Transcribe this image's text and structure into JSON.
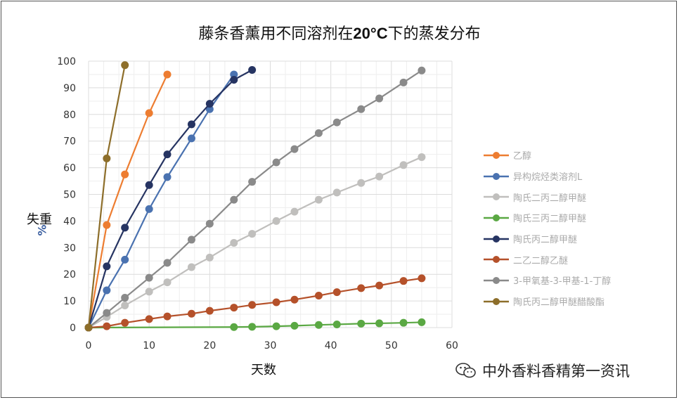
{
  "chart_data": {
    "type": "line",
    "title_parts": [
      "藤条香薰用不同溶剂在",
      "20°C",
      "下的蒸发分布"
    ],
    "xlabel": "天数",
    "ylabel": "失重",
    "ylabel_unit": "%",
    "xlim": [
      0,
      60
    ],
    "ylim": [
      0,
      100
    ],
    "xticks": [
      0,
      10,
      20,
      30,
      40,
      50,
      60
    ],
    "yticks": [
      0,
      10,
      20,
      30,
      40,
      50,
      60,
      70,
      80,
      90,
      100
    ],
    "grid": true,
    "legend_position": "right",
    "series": [
      {
        "name": "乙醇",
        "color": "#ed7d31",
        "x": [
          0,
          3,
          6,
          10,
          13
        ],
        "y": [
          0,
          38.5,
          57.5,
          80.5,
          95
        ]
      },
      {
        "name": "异构烷烃类溶剂L",
        "color": "#4a72b0",
        "x": [
          0,
          3,
          6,
          10,
          13,
          17,
          20,
          24
        ],
        "y": [
          0,
          14,
          25.5,
          44.5,
          56.5,
          71,
          82,
          95
        ]
      },
      {
        "name": "陶氏二丙二醇甲醚",
        "color": "#c0bfbd",
        "x": [
          0,
          3,
          6,
          10,
          13,
          17,
          20,
          24,
          27,
          31,
          34,
          38,
          41,
          45,
          48,
          52,
          55
        ],
        "y": [
          0,
          4,
          8.3,
          13.5,
          17,
          22.7,
          26.3,
          31.8,
          35.2,
          40,
          43.5,
          48,
          50.7,
          54.3,
          56.7,
          61,
          64
        ]
      },
      {
        "name": "陶氏三丙二醇甲醚",
        "color": "#5aa843",
        "x": [
          0,
          24,
          27,
          31,
          34,
          38,
          41,
          45,
          48,
          52,
          55
        ],
        "y": [
          0,
          0.2,
          0.3,
          0.5,
          0.7,
          1,
          1.2,
          1.5,
          1.6,
          1.8,
          2
        ]
      },
      {
        "name": "陶氏丙二醇甲醚",
        "color": "#263462",
        "x": [
          0,
          3,
          6,
          10,
          13,
          17,
          20,
          24,
          27
        ],
        "y": [
          0,
          23,
          37.5,
          53.5,
          65,
          76.3,
          84,
          93,
          96.7
        ]
      },
      {
        "name": "二乙二醇乙醚",
        "color": "#b5512a",
        "x": [
          0,
          3,
          6,
          10,
          13,
          17,
          20,
          24,
          27,
          31,
          34,
          38,
          41,
          45,
          48,
          52,
          55
        ],
        "y": [
          0,
          0.5,
          1.8,
          3.2,
          4.2,
          5.2,
          6.3,
          7.5,
          8.5,
          9.5,
          10.5,
          12,
          13.3,
          14.8,
          15.8,
          17.5,
          18.5
        ]
      },
      {
        "name": "3-甲氧基-3-甲基-1-丁醇",
        "color": "#8a8a8a",
        "x": [
          0,
          3,
          6,
          10,
          13,
          17,
          20,
          24,
          27,
          31,
          34,
          38,
          41,
          45,
          48,
          52,
          55
        ],
        "y": [
          0,
          5.5,
          11.2,
          18.7,
          24.3,
          33,
          39,
          48,
          54.7,
          62,
          67,
          73,
          77,
          82,
          86,
          92,
          96.5
        ]
      },
      {
        "name": "陶氏丙二醇甲醚醋酸酯",
        "color": "#8d6e2a",
        "x": [
          0,
          3,
          6
        ],
        "y": [
          0,
          63.5,
          98.5
        ]
      }
    ]
  },
  "watermark": {
    "text": "中外香料香精第一资讯",
    "icon": "wechat-icon"
  }
}
